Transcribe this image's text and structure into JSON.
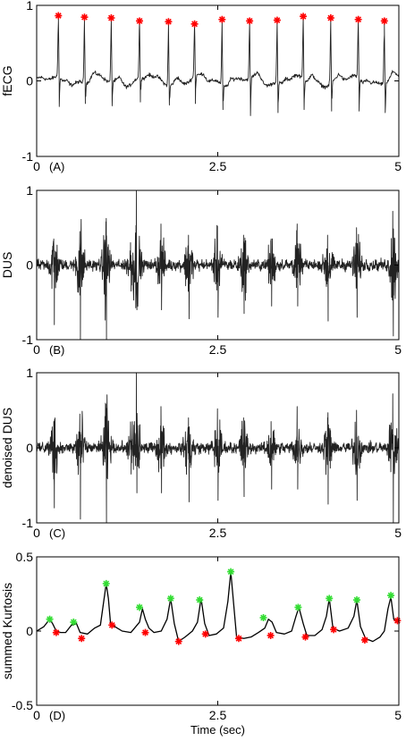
{
  "chart_data": [
    {
      "type": "line",
      "panel_label": "(A)",
      "ylabel": "fECG",
      "xlim": [
        0,
        5
      ],
      "ylim": [
        -1,
        1
      ],
      "xticks": [
        "0",
        "2.5",
        "5"
      ],
      "yticks": [
        "-1",
        "0",
        "1"
      ],
      "signal": "ecg",
      "peak_marker_color": "#ff0000",
      "peaks": [
        {
          "x": 0.3,
          "y": 0.84
        },
        {
          "x": 0.66,
          "y": 0.82
        },
        {
          "x": 1.03,
          "y": 0.81
        },
        {
          "x": 1.42,
          "y": 0.77
        },
        {
          "x": 1.82,
          "y": 0.76
        },
        {
          "x": 2.18,
          "y": 0.73
        },
        {
          "x": 2.56,
          "y": 0.79
        },
        {
          "x": 2.94,
          "y": 0.77
        },
        {
          "x": 3.32,
          "y": 0.78
        },
        {
          "x": 3.68,
          "y": 0.83
        },
        {
          "x": 4.06,
          "y": 0.81
        },
        {
          "x": 4.44,
          "y": 0.79
        },
        {
          "x": 4.8,
          "y": 0.77
        }
      ],
      "troughs": [
        {
          "x": 0.3,
          "y": -0.34
        },
        {
          "x": 0.66,
          "y": -0.3
        },
        {
          "x": 1.03,
          "y": -0.33
        },
        {
          "x": 1.42,
          "y": -0.28
        },
        {
          "x": 1.82,
          "y": -0.32
        },
        {
          "x": 2.18,
          "y": -0.3
        },
        {
          "x": 2.56,
          "y": -0.38
        },
        {
          "x": 2.94,
          "y": -0.46
        },
        {
          "x": 3.32,
          "y": -0.42
        },
        {
          "x": 3.68,
          "y": -0.38
        },
        {
          "x": 4.06,
          "y": -0.4
        },
        {
          "x": 4.44,
          "y": -0.4
        },
        {
          "x": 4.8,
          "y": -0.42
        }
      ]
    },
    {
      "type": "line",
      "panel_label": "(B)",
      "ylabel": "DUS",
      "xlim": [
        0,
        5
      ],
      "ylim": [
        -1,
        1
      ],
      "xticks": [
        "0",
        "2.5",
        "5"
      ],
      "yticks": [
        "-1",
        "0",
        "1"
      ],
      "signal": "burst",
      "bursts": [
        {
          "x": 0.24,
          "pos": 0.35,
          "neg": -0.8
        },
        {
          "x": 0.6,
          "pos": 0.45,
          "neg": -1.0
        },
        {
          "x": 0.96,
          "pos": 0.58,
          "neg": -1.0
        },
        {
          "x": 1.3,
          "pos": 0.3,
          "neg": -0.35
        },
        {
          "x": 1.38,
          "pos": 1.0,
          "neg": -0.6
        },
        {
          "x": 1.72,
          "pos": 0.55,
          "neg": -0.6
        },
        {
          "x": 2.1,
          "pos": 0.4,
          "neg": -0.72
        },
        {
          "x": 2.5,
          "pos": 0.52,
          "neg": -0.7
        },
        {
          "x": 2.86,
          "pos": 0.4,
          "neg": -0.65
        },
        {
          "x": 3.24,
          "pos": 0.35,
          "neg": -0.55
        },
        {
          "x": 3.6,
          "pos": 0.55,
          "neg": -0.55
        },
        {
          "x": 4.02,
          "pos": 0.4,
          "neg": -0.75
        },
        {
          "x": 4.42,
          "pos": 0.5,
          "neg": -0.7
        },
        {
          "x": 4.92,
          "pos": 0.72,
          "neg": -0.95
        }
      ]
    },
    {
      "type": "line",
      "panel_label": "(C)",
      "ylabel": "denoised DUS",
      "xlim": [
        0,
        5
      ],
      "ylim": [
        -1,
        1
      ],
      "xticks": [
        "0",
        "2.5",
        "5"
      ],
      "yticks": [
        "-1",
        "0",
        "1"
      ],
      "signal": "burst",
      "bursts": [
        {
          "x": 0.24,
          "pos": 0.35,
          "neg": -0.8
        },
        {
          "x": 0.6,
          "pos": 0.45,
          "neg": -0.95
        },
        {
          "x": 0.96,
          "pos": 0.58,
          "neg": -1.0
        },
        {
          "x": 1.3,
          "pos": 0.3,
          "neg": -0.35
        },
        {
          "x": 1.38,
          "pos": 1.0,
          "neg": -0.6
        },
        {
          "x": 1.72,
          "pos": 0.55,
          "neg": -0.6
        },
        {
          "x": 2.1,
          "pos": 0.4,
          "neg": -0.72
        },
        {
          "x": 2.5,
          "pos": 0.52,
          "neg": -0.7
        },
        {
          "x": 2.86,
          "pos": 0.4,
          "neg": -0.65
        },
        {
          "x": 3.24,
          "pos": 0.35,
          "neg": -0.55
        },
        {
          "x": 3.6,
          "pos": 0.55,
          "neg": -0.55
        },
        {
          "x": 4.02,
          "pos": 0.4,
          "neg": -0.75
        },
        {
          "x": 4.42,
          "pos": 0.5,
          "neg": -0.7
        },
        {
          "x": 4.92,
          "pos": 0.72,
          "neg": -1.0
        }
      ]
    },
    {
      "type": "line",
      "panel_label": "(D)",
      "ylabel": "summed Kurtosis",
      "xlabel": "Time (sec)",
      "xlim": [
        0,
        5
      ],
      "ylim": [
        -0.5,
        0.5
      ],
      "xticks": [
        "0",
        "2.5",
        "5"
      ],
      "yticks": [
        "-0.5",
        "0",
        "0.5"
      ],
      "signal": "kurtosis",
      "peak_marker_color": "#33dd33",
      "onset_marker_color": "#ff0000",
      "line_points": [
        [
          0.0,
          0.0
        ],
        [
          0.1,
          0.03
        ],
        [
          0.18,
          0.08
        ],
        [
          0.22,
          0.05
        ],
        [
          0.27,
          0.0
        ],
        [
          0.33,
          -0.01
        ],
        [
          0.4,
          -0.01
        ],
        [
          0.48,
          0.04
        ],
        [
          0.55,
          0.05
        ],
        [
          0.6,
          -0.01
        ],
        [
          0.7,
          -0.02
        ],
        [
          0.8,
          0.02
        ],
        [
          0.88,
          0.04
        ],
        [
          0.92,
          0.18
        ],
        [
          0.96,
          0.32
        ],
        [
          0.99,
          0.22
        ],
        [
          1.02,
          0.05
        ],
        [
          1.08,
          0.03
        ],
        [
          1.18,
          0.0
        ],
        [
          1.3,
          -0.01
        ],
        [
          1.42,
          0.06
        ],
        [
          1.46,
          0.15
        ],
        [
          1.5,
          0.08
        ],
        [
          1.55,
          0.02
        ],
        [
          1.62,
          -0.01
        ],
        [
          1.72,
          0.0
        ],
        [
          1.8,
          0.08
        ],
        [
          1.85,
          0.22
        ],
        [
          1.9,
          0.05
        ],
        [
          1.96,
          -0.07
        ],
        [
          2.05,
          -0.04
        ],
        [
          2.15,
          0.0
        ],
        [
          2.22,
          0.06
        ],
        [
          2.27,
          0.22
        ],
        [
          2.32,
          0.05
        ],
        [
          2.38,
          -0.03
        ],
        [
          2.48,
          -0.02
        ],
        [
          2.58,
          0.02
        ],
        [
          2.64,
          0.2
        ],
        [
          2.68,
          0.4
        ],
        [
          2.72,
          0.18
        ],
        [
          2.76,
          -0.04
        ],
        [
          2.86,
          -0.05
        ],
        [
          2.96,
          -0.04
        ],
        [
          3.06,
          -0.01
        ],
        [
          3.15,
          0.02
        ],
        [
          3.2,
          0.08
        ],
        [
          3.25,
          0.06
        ],
        [
          3.31,
          -0.01
        ],
        [
          3.42,
          -0.02
        ],
        [
          3.52,
          0.0
        ],
        [
          3.58,
          0.1
        ],
        [
          3.62,
          0.16
        ],
        [
          3.68,
          0.05
        ],
        [
          3.73,
          -0.03
        ],
        [
          3.84,
          -0.03
        ],
        [
          3.94,
          0.01
        ],
        [
          4.0,
          0.1
        ],
        [
          4.04,
          0.22
        ],
        [
          4.09,
          0.02
        ],
        [
          4.18,
          0.0
        ],
        [
          4.3,
          0.02
        ],
        [
          4.38,
          0.1
        ],
        [
          4.42,
          0.21
        ],
        [
          4.47,
          0.03
        ],
        [
          4.54,
          -0.05
        ],
        [
          4.64,
          -0.07
        ],
        [
          4.74,
          -0.04
        ],
        [
          4.8,
          0.0
        ],
        [
          4.85,
          0.15
        ],
        [
          4.89,
          0.23
        ],
        [
          4.93,
          0.08
        ],
        [
          4.97,
          0.06
        ],
        [
          5.0,
          0.07
        ]
      ],
      "peaks": [
        {
          "x": 0.18,
          "y": 0.08
        },
        {
          "x": 0.51,
          "y": 0.06
        },
        {
          "x": 0.96,
          "y": 0.32
        },
        {
          "x": 1.42,
          "y": 0.16
        },
        {
          "x": 1.85,
          "y": 0.22
        },
        {
          "x": 2.25,
          "y": 0.21
        },
        {
          "x": 2.68,
          "y": 0.4
        },
        {
          "x": 3.13,
          "y": 0.09
        },
        {
          "x": 3.61,
          "y": 0.16
        },
        {
          "x": 4.04,
          "y": 0.22
        },
        {
          "x": 4.42,
          "y": 0.21
        },
        {
          "x": 4.89,
          "y": 0.24
        }
      ],
      "onsets": [
        {
          "x": 0.27,
          "y": -0.01
        },
        {
          "x": 0.62,
          "y": -0.05
        },
        {
          "x": 1.04,
          "y": 0.04
        },
        {
          "x": 1.5,
          "y": -0.01
        },
        {
          "x": 1.96,
          "y": -0.07
        },
        {
          "x": 2.33,
          "y": -0.02
        },
        {
          "x": 2.79,
          "y": -0.05
        },
        {
          "x": 3.23,
          "y": -0.03
        },
        {
          "x": 3.71,
          "y": -0.04
        },
        {
          "x": 4.1,
          "y": 0.01
        },
        {
          "x": 4.53,
          "y": -0.06
        },
        {
          "x": 4.98,
          "y": 0.07
        }
      ]
    }
  ]
}
